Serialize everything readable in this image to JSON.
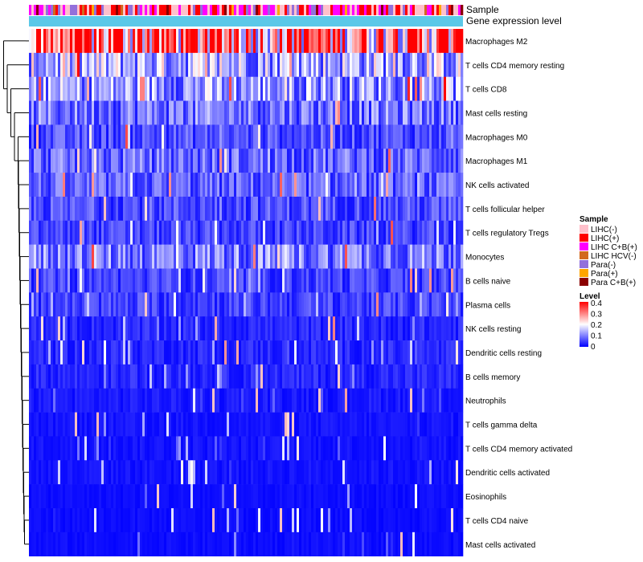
{
  "chart_data": {
    "type": "heatmap",
    "column_annotations": [
      "Sample",
      "Gene expression level"
    ],
    "rows": [
      "Macrophages M2",
      "T cells CD4 memory resting",
      "T cells CD8",
      "Mast cells resting",
      "Macrophages M0",
      "Macrophages M1",
      "NK cells activated",
      "T cells follicular helper",
      "T cells regulatory  Tregs",
      "Monocytes",
      "B cells naive",
      "Plasma cells",
      "NK cells resting",
      "Dendritic cells resting",
      "B cells memory",
      "Neutrophils",
      "T cells gamma delta",
      "T cells CD4 memory activated",
      "Dendritic cells activated",
      "Eosinophils",
      "T cells CD4 naive",
      "Mast cells activated"
    ],
    "approx_mean_levels": [
      0.32,
      0.14,
      0.12,
      0.09,
      0.06,
      0.08,
      0.07,
      0.06,
      0.05,
      0.1,
      0.05,
      0.05,
      0.03,
      0.03,
      0.03,
      0.02,
      0.015,
      0.015,
      0.015,
      0.01,
      0.01,
      0.01
    ],
    "sample_legend": {
      "title": "Sample",
      "items": [
        {
          "label": "LIHC(-)",
          "color": "#ffc0cb"
        },
        {
          "label": "LIHC(+)",
          "color": "#ff0000"
        },
        {
          "label": "LIHC C+B(+)",
          "color": "#ff00ff"
        },
        {
          "label": "LIHC HCV(-)",
          "color": "#d2691e"
        },
        {
          "label": "Para(-)",
          "color": "#9370db"
        },
        {
          "label": "Para(+)",
          "color": "#ffa500"
        },
        {
          "label": "Para C+B(+)",
          "color": "#8b0000"
        }
      ]
    },
    "level_legend": {
      "title": "Level",
      "ticks": [
        "0.4",
        "0.3",
        "0.2",
        "0.1",
        "0"
      ],
      "range": [
        0,
        0.4
      ],
      "colors": [
        "#0000ff",
        "#ffffff",
        "#ff0000"
      ]
    },
    "gene_expression_color": "#5bc8e8"
  }
}
